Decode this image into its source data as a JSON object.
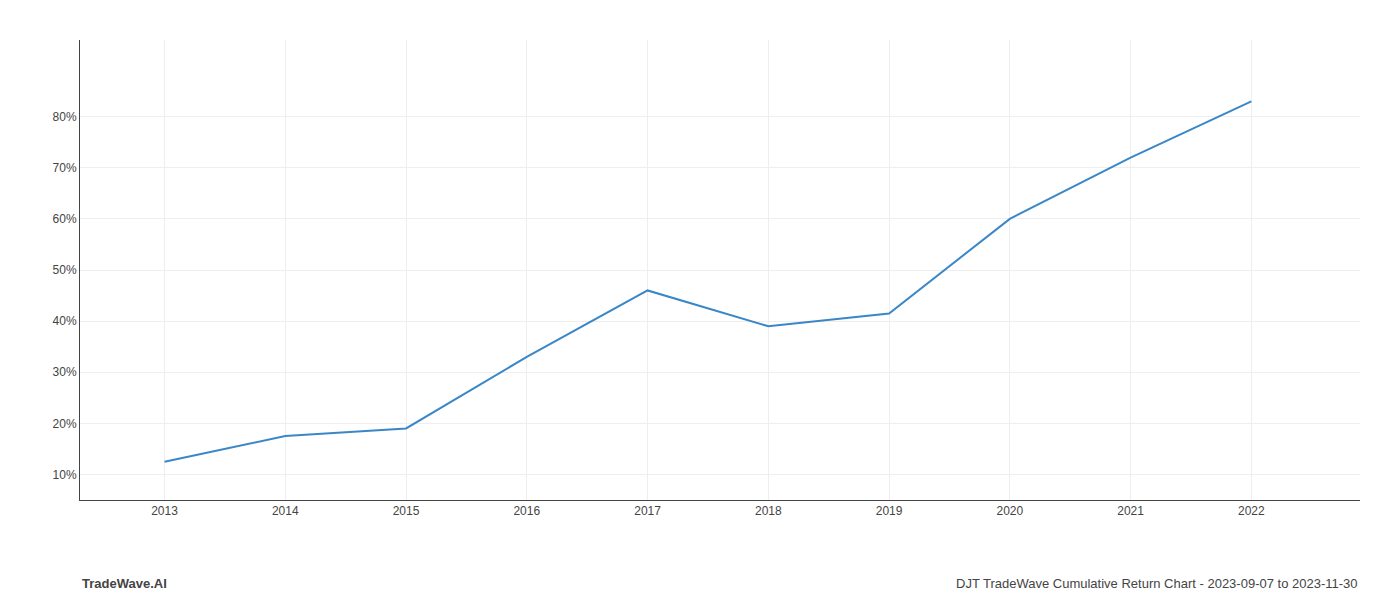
{
  "chart_data": {
    "type": "line",
    "x": [
      2013,
      2014,
      2015,
      2016,
      2017,
      2018,
      2019,
      2020,
      2021,
      2022
    ],
    "values": [
      12.5,
      17.5,
      19.0,
      33.0,
      46.0,
      39.0,
      41.5,
      60.0,
      72.0,
      83.0
    ],
    "color": "#3a87c8",
    "xlim": [
      2012.3,
      2022.9
    ],
    "xticks": [
      2013,
      2014,
      2015,
      2016,
      2017,
      2018,
      2019,
      2020,
      2021,
      2022
    ],
    "ylim": [
      5,
      95
    ],
    "yticks": [
      {
        "value": 10,
        "label": "10%"
      },
      {
        "value": 20,
        "label": "20%"
      },
      {
        "value": 30,
        "label": "30%"
      },
      {
        "value": 40,
        "label": "40%"
      },
      {
        "value": 50,
        "label": "50%"
      },
      {
        "value": 60,
        "label": "60%"
      },
      {
        "value": 70,
        "label": "70%"
      },
      {
        "value": 80,
        "label": "80%"
      }
    ],
    "grid": true,
    "annotations": [
      "TradeWave.AI",
      "DJT TradeWave Cumulative Return Chart - 2023-09-07 to 2023-11-30"
    ]
  }
}
